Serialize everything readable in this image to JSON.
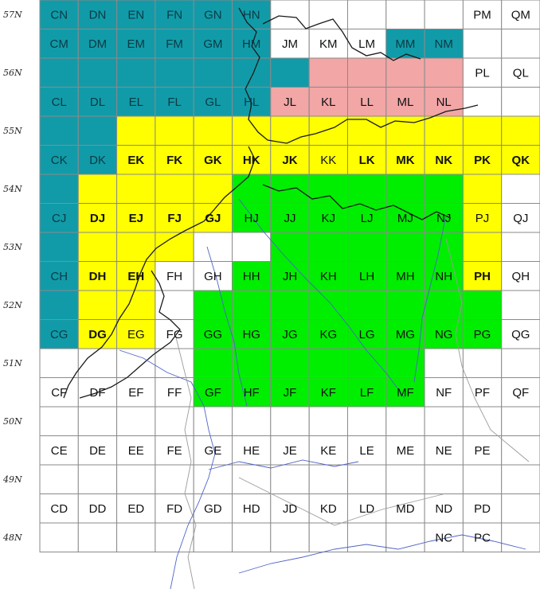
{
  "colors": {
    "sea": "#119ba8",
    "land": "#ffffff",
    "yellow": "#ffff00",
    "green": "#00ee00",
    "pink": "#f2a6a6",
    "river": "#4f63c8",
    "coast": "#1a1a1a"
  },
  "lat_labels": [
    "57N",
    "56N",
    "55N",
    "54N",
    "53N",
    "52N",
    "51N",
    "50N",
    "49N",
    "48N"
  ],
  "rows": [
    {
      "cells": [
        {
          "label": "CN",
          "fill": "sea"
        },
        {
          "label": "DN",
          "fill": "sea"
        },
        {
          "label": "EN",
          "fill": "sea"
        },
        {
          "label": "FN",
          "fill": "sea"
        },
        {
          "label": "GN",
          "fill": "sea"
        },
        {
          "label": "HN",
          "fill": "sea"
        },
        {
          "label": "",
          "fill": "land"
        },
        {
          "label": "",
          "fill": "land"
        },
        {
          "label": "",
          "fill": "land"
        },
        {
          "label": "",
          "fill": "land"
        },
        {
          "label": "",
          "fill": "land"
        },
        {
          "label": "PM",
          "fill": "land"
        },
        {
          "label": "QM",
          "fill": "land"
        }
      ]
    },
    {
      "cells": [
        {
          "label": "CM",
          "fill": "sea"
        },
        {
          "label": "DM",
          "fill": "sea"
        },
        {
          "label": "EM",
          "fill": "sea"
        },
        {
          "label": "FM",
          "fill": "sea"
        },
        {
          "label": "GM",
          "fill": "sea"
        },
        {
          "label": "HM",
          "fill": "sea"
        },
        {
          "label": "JM",
          "fill": "land"
        },
        {
          "label": "KM",
          "fill": "land"
        },
        {
          "label": "LM",
          "fill": "land"
        },
        {
          "label": "MM",
          "fill": "sea"
        },
        {
          "label": "NM",
          "fill": "sea"
        },
        {
          "label": "",
          "fill": "land"
        },
        {
          "label": "",
          "fill": "land"
        }
      ]
    },
    {
      "cells": [
        {
          "label": "",
          "fill": "sea"
        },
        {
          "label": "",
          "fill": "sea"
        },
        {
          "label": "",
          "fill": "sea"
        },
        {
          "label": "",
          "fill": "sea"
        },
        {
          "label": "",
          "fill": "sea"
        },
        {
          "label": "",
          "fill": "sea"
        },
        {
          "label": "",
          "fill": "sea"
        },
        {
          "label": "",
          "fill": "pink"
        },
        {
          "label": "",
          "fill": "pink"
        },
        {
          "label": "",
          "fill": "pink"
        },
        {
          "label": "",
          "fill": "pink"
        },
        {
          "label": "PL",
          "fill": "land"
        },
        {
          "label": "QL",
          "fill": "land"
        }
      ]
    },
    {
      "cells": [
        {
          "label": "CL",
          "fill": "sea"
        },
        {
          "label": "DL",
          "fill": "sea"
        },
        {
          "label": "EL",
          "fill": "sea"
        },
        {
          "label": "FL",
          "fill": "sea"
        },
        {
          "label": "GL",
          "fill": "sea"
        },
        {
          "label": "HL",
          "fill": "sea"
        },
        {
          "label": "JL",
          "fill": "pink"
        },
        {
          "label": "KL",
          "fill": "pink"
        },
        {
          "label": "LL",
          "fill": "pink"
        },
        {
          "label": "ML",
          "fill": "pink"
        },
        {
          "label": "NL",
          "fill": "pink"
        },
        {
          "label": "",
          "fill": "land"
        },
        {
          "label": "",
          "fill": "land"
        }
      ]
    },
    {
      "cells": [
        {
          "label": "",
          "fill": "sea"
        },
        {
          "label": "",
          "fill": "sea"
        },
        {
          "label": "",
          "fill": "yellow"
        },
        {
          "label": "",
          "fill": "yellow"
        },
        {
          "label": "",
          "fill": "yellow"
        },
        {
          "label": "",
          "fill": "yellow"
        },
        {
          "label": "",
          "fill": "yellow"
        },
        {
          "label": "",
          "fill": "yellow"
        },
        {
          "label": "",
          "fill": "yellow"
        },
        {
          "label": "",
          "fill": "yellow"
        },
        {
          "label": "",
          "fill": "yellow"
        },
        {
          "label": "",
          "fill": "yellow"
        },
        {
          "label": "",
          "fill": "yellow"
        }
      ]
    },
    {
      "cells": [
        {
          "label": "CK",
          "fill": "sea"
        },
        {
          "label": "DK",
          "fill": "sea"
        },
        {
          "label": "EK",
          "fill": "yellow",
          "bold": true
        },
        {
          "label": "FK",
          "fill": "yellow",
          "bold": true
        },
        {
          "label": "GK",
          "fill": "yellow",
          "bold": true
        },
        {
          "label": "HK",
          "fill": "yellow",
          "bold": true
        },
        {
          "label": "JK",
          "fill": "yellow",
          "bold": true
        },
        {
          "label": "KK",
          "fill": "yellow"
        },
        {
          "label": "LK",
          "fill": "yellow",
          "bold": true
        },
        {
          "label": "MK",
          "fill": "yellow",
          "bold": true
        },
        {
          "label": "NK",
          "fill": "yellow",
          "bold": true
        },
        {
          "label": "PK",
          "fill": "yellow",
          "bold": true
        },
        {
          "label": "QK",
          "fill": "yellow",
          "bold": true
        }
      ]
    },
    {
      "cells": [
        {
          "label": "",
          "fill": "sea"
        },
        {
          "label": "",
          "fill": "yellow"
        },
        {
          "label": "",
          "fill": "yellow"
        },
        {
          "label": "",
          "fill": "yellow"
        },
        {
          "label": "",
          "fill": "yellow"
        },
        {
          "label": "",
          "fill": "green"
        },
        {
          "label": "",
          "fill": "green"
        },
        {
          "label": "",
          "fill": "green"
        },
        {
          "label": "",
          "fill": "green"
        },
        {
          "label": "",
          "fill": "green"
        },
        {
          "label": "",
          "fill": "green"
        },
        {
          "label": "",
          "fill": "yellow"
        },
        {
          "label": "",
          "fill": "land"
        }
      ]
    },
    {
      "cells": [
        {
          "label": "CJ",
          "fill": "sea"
        },
        {
          "label": "DJ",
          "fill": "yellow",
          "bold": true
        },
        {
          "label": "EJ",
          "fill": "yellow",
          "bold": true
        },
        {
          "label": "FJ",
          "fill": "yellow",
          "bold": true
        },
        {
          "label": "GJ",
          "fill": "yellow",
          "bold": true
        },
        {
          "label": "HJ",
          "fill": "green"
        },
        {
          "label": "JJ",
          "fill": "green"
        },
        {
          "label": "KJ",
          "fill": "green"
        },
        {
          "label": "LJ",
          "fill": "green"
        },
        {
          "label": "MJ",
          "fill": "green"
        },
        {
          "label": "NJ",
          "fill": "green"
        },
        {
          "label": "PJ",
          "fill": "yellow"
        },
        {
          "label": "QJ",
          "fill": "land"
        }
      ]
    },
    {
      "cells": [
        {
          "label": "",
          "fill": "sea"
        },
        {
          "label": "",
          "fill": "yellow"
        },
        {
          "label": "",
          "fill": "yellow"
        },
        {
          "label": "",
          "fill": "yellow"
        },
        {
          "label": "",
          "fill": "land"
        },
        {
          "label": "",
          "fill": "land"
        },
        {
          "label": "",
          "fill": "green"
        },
        {
          "label": "",
          "fill": "green"
        },
        {
          "label": "",
          "fill": "green"
        },
        {
          "label": "",
          "fill": "green"
        },
        {
          "label": "",
          "fill": "green"
        },
        {
          "label": "",
          "fill": "yellow"
        },
        {
          "label": "",
          "fill": "land"
        }
      ]
    },
    {
      "cells": [
        {
          "label": "CH",
          "fill": "sea"
        },
        {
          "label": "DH",
          "fill": "yellow",
          "bold": true
        },
        {
          "label": "EH",
          "fill": "yellow",
          "bold": true
        },
        {
          "label": "FH",
          "fill": "land"
        },
        {
          "label": "GH",
          "fill": "land"
        },
        {
          "label": "HH",
          "fill": "green"
        },
        {
          "label": "JH",
          "fill": "green"
        },
        {
          "label": "KH",
          "fill": "green"
        },
        {
          "label": "LH",
          "fill": "green"
        },
        {
          "label": "MH",
          "fill": "green"
        },
        {
          "label": "NH",
          "fill": "green"
        },
        {
          "label": "PH",
          "fill": "yellow",
          "bold": true
        },
        {
          "label": "QH",
          "fill": "land"
        }
      ]
    },
    {
      "cells": [
        {
          "label": "",
          "fill": "sea"
        },
        {
          "label": "",
          "fill": "yellow"
        },
        {
          "label": "",
          "fill": "yellow"
        },
        {
          "label": "",
          "fill": "land"
        },
        {
          "label": "",
          "fill": "green"
        },
        {
          "label": "",
          "fill": "green"
        },
        {
          "label": "",
          "fill": "green"
        },
        {
          "label": "",
          "fill": "green"
        },
        {
          "label": "",
          "fill": "green"
        },
        {
          "label": "",
          "fill": "green"
        },
        {
          "label": "",
          "fill": "green"
        },
        {
          "label": "",
          "fill": "green"
        },
        {
          "label": "",
          "fill": "land"
        }
      ]
    },
    {
      "cells": [
        {
          "label": "CG",
          "fill": "sea"
        },
        {
          "label": "DG",
          "fill": "yellow",
          "bold": true
        },
        {
          "label": "EG",
          "fill": "yellow"
        },
        {
          "label": "FG",
          "fill": "land"
        },
        {
          "label": "GG",
          "fill": "green"
        },
        {
          "label": "HG",
          "fill": "green"
        },
        {
          "label": "JG",
          "fill": "green"
        },
        {
          "label": "KG",
          "fill": "green"
        },
        {
          "label": "LG",
          "fill": "green"
        },
        {
          "label": "MG",
          "fill": "green"
        },
        {
          "label": "NG",
          "fill": "green"
        },
        {
          "label": "PG",
          "fill": "green"
        },
        {
          "label": "QG",
          "fill": "land"
        }
      ]
    },
    {
      "cells": [
        {
          "label": "",
          "fill": "land"
        },
        {
          "label": "",
          "fill": "land"
        },
        {
          "label": "",
          "fill": "land"
        },
        {
          "label": "",
          "fill": "land"
        },
        {
          "label": "",
          "fill": "green"
        },
        {
          "label": "",
          "fill": "green"
        },
        {
          "label": "",
          "fill": "green"
        },
        {
          "label": "",
          "fill": "green"
        },
        {
          "label": "",
          "fill": "green"
        },
        {
          "label": "",
          "fill": "green"
        },
        {
          "label": "",
          "fill": "land"
        },
        {
          "label": "",
          "fill": "land"
        },
        {
          "label": "",
          "fill": "land"
        }
      ]
    },
    {
      "cells": [
        {
          "label": "CF",
          "fill": "land"
        },
        {
          "label": "DF",
          "fill": "land"
        },
        {
          "label": "EF",
          "fill": "land"
        },
        {
          "label": "FF",
          "fill": "land"
        },
        {
          "label": "GF",
          "fill": "green"
        },
        {
          "label": "HF",
          "fill": "green"
        },
        {
          "label": "JF",
          "fill": "green"
        },
        {
          "label": "KF",
          "fill": "green"
        },
        {
          "label": "LF",
          "fill": "green"
        },
        {
          "label": "MF",
          "fill": "green"
        },
        {
          "label": "NF",
          "fill": "land"
        },
        {
          "label": "PF",
          "fill": "land"
        },
        {
          "label": "QF",
          "fill": "land"
        }
      ]
    },
    {
      "cells": [
        {
          "label": "",
          "fill": "land"
        },
        {
          "label": "",
          "fill": "land"
        },
        {
          "label": "",
          "fill": "land"
        },
        {
          "label": "",
          "fill": "land"
        },
        {
          "label": "",
          "fill": "land"
        },
        {
          "label": "",
          "fill": "land"
        },
        {
          "label": "",
          "fill": "land"
        },
        {
          "label": "",
          "fill": "land"
        },
        {
          "label": "",
          "fill": "land"
        },
        {
          "label": "",
          "fill": "land"
        },
        {
          "label": "",
          "fill": "land"
        },
        {
          "label": "",
          "fill": "land"
        },
        {
          "label": "",
          "fill": "land"
        }
      ]
    },
    {
      "cells": [
        {
          "label": "CE",
          "fill": "land"
        },
        {
          "label": "DE",
          "fill": "land"
        },
        {
          "label": "EE",
          "fill": "land"
        },
        {
          "label": "FE",
          "fill": "land"
        },
        {
          "label": "GE",
          "fill": "land"
        },
        {
          "label": "HE",
          "fill": "land"
        },
        {
          "label": "JE",
          "fill": "land"
        },
        {
          "label": "KE",
          "fill": "land"
        },
        {
          "label": "LE",
          "fill": "land"
        },
        {
          "label": "ME",
          "fill": "land"
        },
        {
          "label": "NE",
          "fill": "land"
        },
        {
          "label": "PE",
          "fill": "land"
        },
        {
          "label": "",
          "fill": "land"
        }
      ]
    },
    {
      "cells": [
        {
          "label": "",
          "fill": "land"
        },
        {
          "label": "",
          "fill": "land"
        },
        {
          "label": "",
          "fill": "land"
        },
        {
          "label": "",
          "fill": "land"
        },
        {
          "label": "",
          "fill": "land"
        },
        {
          "label": "",
          "fill": "land"
        },
        {
          "label": "",
          "fill": "land"
        },
        {
          "label": "",
          "fill": "land"
        },
        {
          "label": "",
          "fill": "land"
        },
        {
          "label": "",
          "fill": "land"
        },
        {
          "label": "",
          "fill": "land"
        },
        {
          "label": "",
          "fill": "land"
        },
        {
          "label": "",
          "fill": "land"
        }
      ]
    },
    {
      "cells": [
        {
          "label": "CD",
          "fill": "land"
        },
        {
          "label": "DD",
          "fill": "land"
        },
        {
          "label": "ED",
          "fill": "land"
        },
        {
          "label": "FD",
          "fill": "land"
        },
        {
          "label": "GD",
          "fill": "land"
        },
        {
          "label": "HD",
          "fill": "land"
        },
        {
          "label": "JD",
          "fill": "land"
        },
        {
          "label": "KD",
          "fill": "land"
        },
        {
          "label": "LD",
          "fill": "land"
        },
        {
          "label": "MD",
          "fill": "land"
        },
        {
          "label": "ND",
          "fill": "land"
        },
        {
          "label": "PD",
          "fill": "land"
        },
        {
          "label": "",
          "fill": "land"
        }
      ]
    },
    {
      "cells": [
        {
          "label": "",
          "fill": "land"
        },
        {
          "label": "",
          "fill": "land"
        },
        {
          "label": "",
          "fill": "land"
        },
        {
          "label": "",
          "fill": "land"
        },
        {
          "label": "",
          "fill": "land"
        },
        {
          "label": "",
          "fill": "land"
        },
        {
          "label": "",
          "fill": "land"
        },
        {
          "label": "",
          "fill": "land"
        },
        {
          "label": "",
          "fill": "land"
        },
        {
          "label": "",
          "fill": "land"
        },
        {
          "label": "NC",
          "fill": "land"
        },
        {
          "label": "PC",
          "fill": "land"
        },
        {
          "label": "",
          "fill": "land"
        }
      ]
    }
  ]
}
